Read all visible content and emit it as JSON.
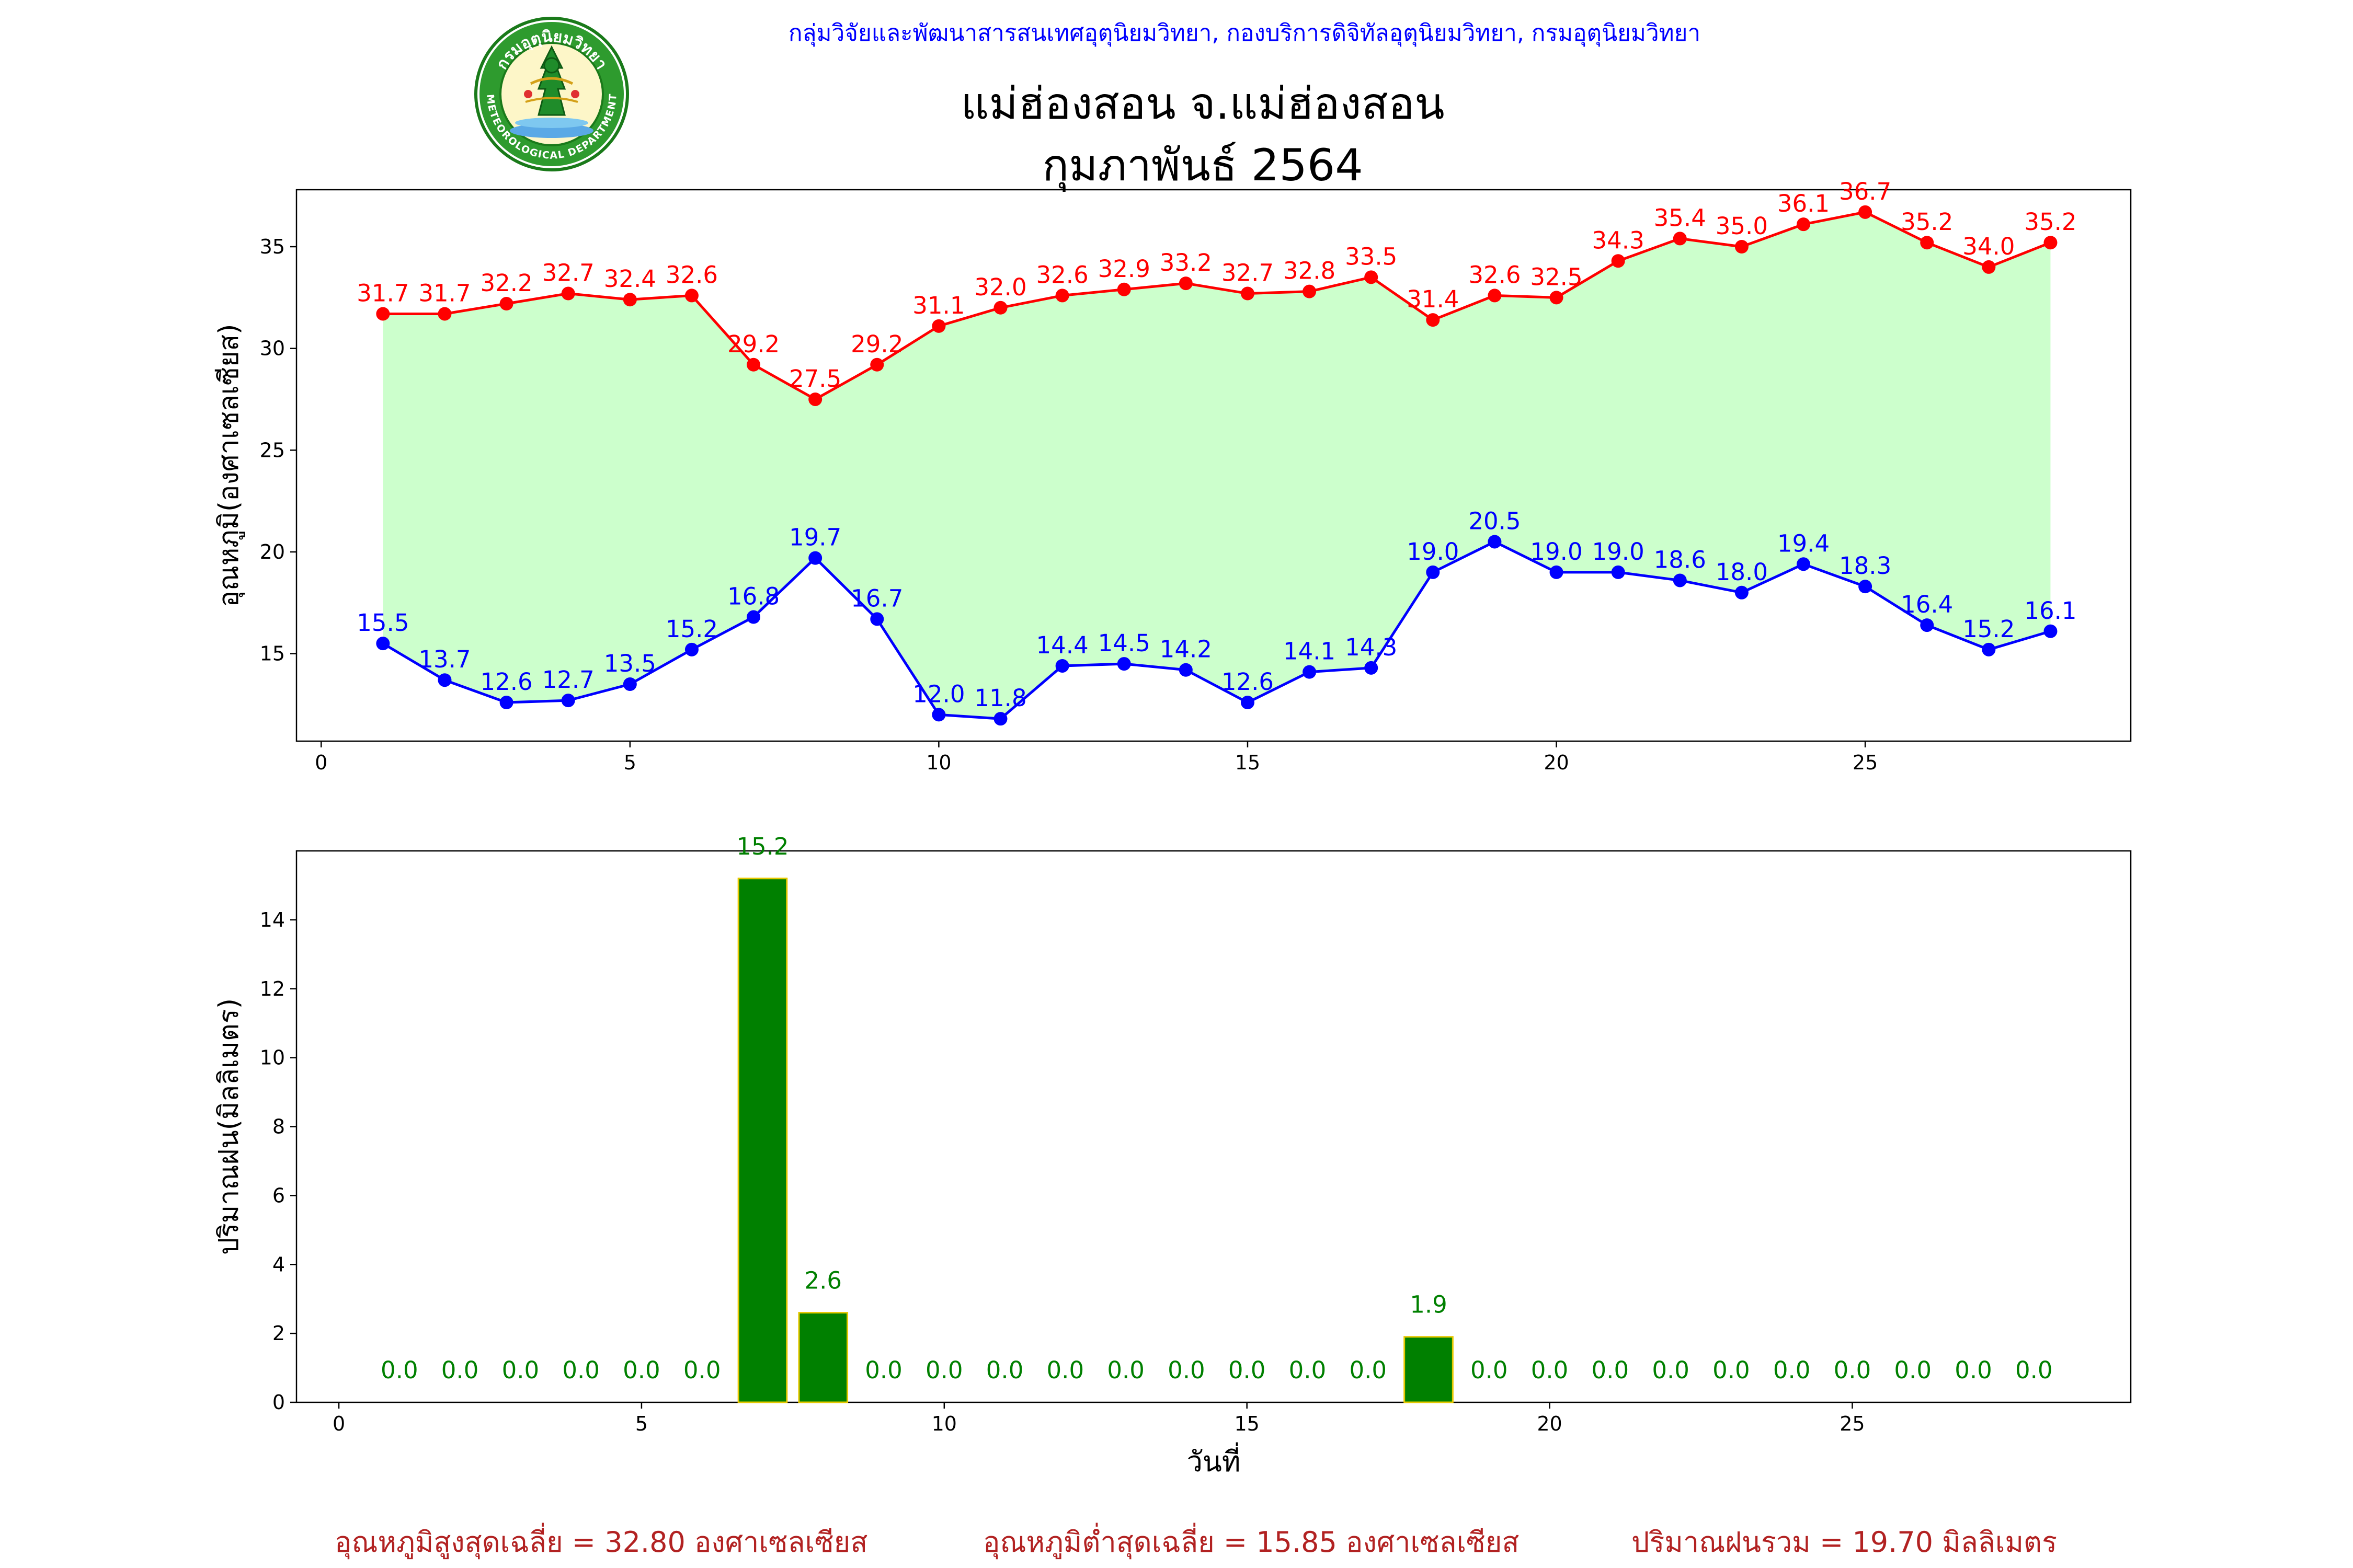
{
  "header": {
    "agency": "กลุ่มวิจัยและพัฒนาสารสนเทศอุตุนิยมวิทยา, กองบริการดิจิทัลอุตุนิยมวิทยา, กรมอุตุนิยมวิทยา",
    "title_line1": "แม่ฮ่องสอน จ.แม่ฮ่องสอน",
    "title_line2": "กุมภาพันธ์ 2564",
    "logo_icon": "meteorological-department-seal-icon",
    "logo_top_text": "กรมอุตุนิยมวิทยา",
    "logo_bottom_text": "METEOROLOGICAL DEPARTMENT"
  },
  "footer": {
    "avg_max": "อุณหภูมิสูงสุดเฉลี่ย = 32.80 องศาเซลเซียส",
    "avg_min": "อุณหภูมิต่ำสุดเฉลี่ย = 15.85 องศาเซลเซียส",
    "rain_total": "ปริมาณฝนรวม = 19.70 มิลลิเมตร"
  },
  "colors": {
    "max_line": "#ff0000",
    "min_line": "#0000ff",
    "fill": "#ccffcc",
    "bar": "#008000",
    "bar_edge": "#e6c800",
    "bar_label": "#008000",
    "footer_text": "#b22222",
    "agency_text": "#0000ff"
  },
  "chart_data": [
    {
      "type": "line",
      "title": "",
      "xlabel": "",
      "ylabel": "อุณหภูมิ(องศาเซลเซียส)",
      "xlim": [
        -0.4,
        29.3
      ],
      "ylim": [
        10.7,
        37.8
      ],
      "xticks": [
        0,
        5,
        10,
        15,
        20,
        25
      ],
      "yticks": [
        15,
        20,
        25,
        30,
        35
      ],
      "x": [
        1,
        2,
        3,
        4,
        5,
        6,
        7,
        8,
        9,
        10,
        11,
        12,
        13,
        14,
        15,
        16,
        17,
        18,
        19,
        20,
        21,
        22,
        23,
        24,
        25,
        26,
        27,
        28
      ],
      "series": [
        {
          "role": "max",
          "color": "#ff0000",
          "values": [
            31.7,
            31.7,
            32.2,
            32.7,
            32.4,
            32.6,
            29.2,
            27.5,
            29.2,
            31.1,
            32.0,
            32.6,
            32.9,
            33.2,
            32.7,
            32.8,
            33.5,
            31.4,
            32.6,
            32.5,
            34.3,
            35.4,
            35.0,
            36.1,
            36.7,
            35.2,
            34.0,
            35.2
          ]
        },
        {
          "role": "min",
          "color": "#0000ff",
          "values": [
            15.5,
            13.7,
            12.6,
            12.7,
            13.5,
            15.2,
            16.8,
            19.7,
            16.7,
            12.0,
            11.8,
            14.4,
            14.5,
            14.2,
            12.6,
            14.1,
            14.3,
            19.0,
            20.5,
            19.0,
            19.0,
            18.6,
            18.0,
            19.4,
            18.3,
            16.4,
            15.2,
            16.1
          ]
        }
      ],
      "fill_between": true,
      "grid": false
    },
    {
      "type": "bar",
      "title": "",
      "xlabel": "วันที่",
      "ylabel": "ปริมาณฝน(มิลลิเมตร)",
      "xlim": [
        -0.7,
        29.6
      ],
      "ylim": [
        0,
        16
      ],
      "xticks": [
        0,
        5,
        10,
        15,
        20,
        25
      ],
      "yticks": [
        0,
        2,
        4,
        6,
        8,
        10,
        12,
        14
      ],
      "x": [
        1,
        2,
        3,
        4,
        5,
        6,
        7,
        8,
        9,
        10,
        11,
        12,
        13,
        14,
        15,
        16,
        17,
        18,
        19,
        20,
        21,
        22,
        23,
        24,
        25,
        26,
        27,
        28
      ],
      "values": [
        0.0,
        0.0,
        0.0,
        0.0,
        0.0,
        0.0,
        15.2,
        2.6,
        0.0,
        0.0,
        0.0,
        0.0,
        0.0,
        0.0,
        0.0,
        0.0,
        0.0,
        1.9,
        0.0,
        0.0,
        0.0,
        0.0,
        0.0,
        0.0,
        0.0,
        0.0,
        0.0,
        0.0
      ],
      "grid": false
    }
  ]
}
